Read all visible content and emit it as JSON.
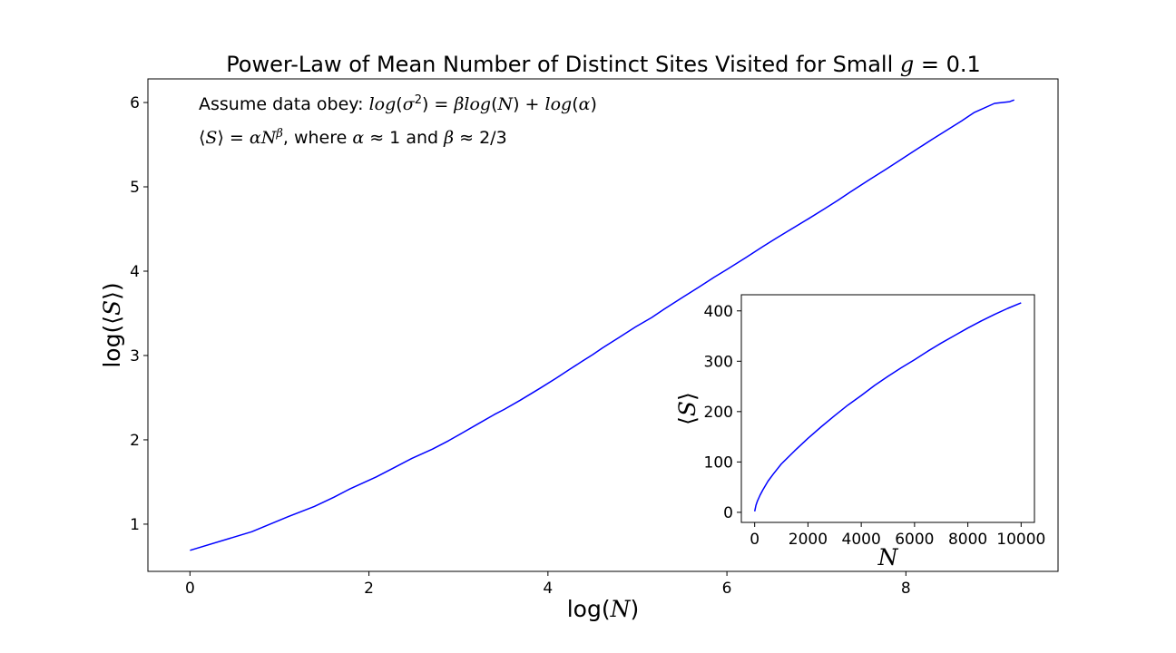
{
  "chart_data": [
    {
      "type": "line",
      "title": {
        "prefix": "Power-Law of  Mean Number of Distinct Sites Visited for Small ",
        "var": "g",
        "suffix": " = 0.1"
      },
      "xlabel": {
        "pre": "log(",
        "var": "N",
        "post": ")"
      },
      "ylabel": {
        "pre": "log(⟨",
        "var": "S",
        "post": "⟩)"
      },
      "xlim": [
        -0.47,
        9.7
      ],
      "ylim": [
        0.44,
        6.28
      ],
      "xticks": [
        0,
        2,
        4,
        6,
        8
      ],
      "yticks": [
        1,
        2,
        3,
        4,
        5,
        6
      ],
      "grid": false,
      "annotations": [
        {
          "segments": [
            {
              "t": "Assume data obey: ",
              "it": false
            },
            {
              "t": "log",
              "it": true
            },
            {
              "t": "(",
              "it": false
            },
            {
              "t": "σ",
              "it": true
            },
            {
              "t": "2",
              "it": false,
              "sup": true
            },
            {
              "t": ") = ",
              "it": false
            },
            {
              "t": "βlog",
              "it": true
            },
            {
              "t": "(",
              "it": false
            },
            {
              "t": "N",
              "it": true
            },
            {
              "t": ") + ",
              "it": false
            },
            {
              "t": "log",
              "it": true
            },
            {
              "t": "(",
              "it": false
            },
            {
              "t": "α",
              "it": true
            },
            {
              "t": ")",
              "it": false
            }
          ]
        },
        {
          "segments": [
            {
              "t": "⟨",
              "it": false
            },
            {
              "t": "S",
              "it": true
            },
            {
              "t": "⟩ = ",
              "it": false
            },
            {
              "t": "αN",
              "it": true
            },
            {
              "t": "β",
              "it": true,
              "sup": true
            },
            {
              "t": ", where ",
              "it": false
            },
            {
              "t": "α",
              "it": true
            },
            {
              "t": " ≈ 1 and ",
              "it": false
            },
            {
              "t": "β",
              "it": true
            },
            {
              "t": " ≈ 2/3",
              "it": false
            }
          ]
        }
      ],
      "series": [
        {
          "color": "#0000ff",
          "x": [
            0,
            0.69,
            1.1,
            1.39,
            1.61,
            1.79,
            2.08,
            2.3,
            2.48,
            2.71,
            2.89,
            3.04,
            3.22,
            3.4,
            3.51,
            3.69,
            3.91,
            4.09,
            4.25,
            4.38,
            4.5,
            4.61,
            4.79,
            4.98,
            5.16,
            5.3,
            5.52,
            5.7,
            5.86,
            6.0,
            6.21,
            6.4,
            6.55,
            6.69,
            6.91,
            7.09,
            7.24,
            7.38,
            7.6,
            7.78,
            7.94,
            8.07,
            8.29,
            8.47,
            8.62,
            8.76,
            8.99,
            9.16,
            9.21
          ],
          "y": [
            0.69,
            0.91,
            1.09,
            1.21,
            1.32,
            1.42,
            1.56,
            1.68,
            1.78,
            1.89,
            1.99,
            2.08,
            2.19,
            2.3,
            2.36,
            2.47,
            2.61,
            2.73,
            2.84,
            2.93,
            3.01,
            3.09,
            3.21,
            3.34,
            3.45,
            3.55,
            3.7,
            3.82,
            3.93,
            4.02,
            4.16,
            4.29,
            4.39,
            4.48,
            4.62,
            4.74,
            4.84,
            4.94,
            5.09,
            5.21,
            5.32,
            5.41,
            5.56,
            5.68,
            5.78,
            5.88,
            5.99,
            6.01,
            6.03
          ]
        }
      ]
    },
    {
      "type": "line",
      "title": "",
      "xlabel": {
        "pre": "",
        "var": "N",
        "post": ""
      },
      "ylabel": {
        "pre": "⟨",
        "var": "S",
        "post": "⟩"
      },
      "xlim": [
        -500,
        10500
      ],
      "ylim": [
        -20,
        432
      ],
      "xticks": [
        0,
        2000,
        4000,
        6000,
        8000,
        10000
      ],
      "yticks": [
        0,
        100,
        200,
        300,
        400
      ],
      "grid": false,
      "series": [
        {
          "color": "#0000ff",
          "x": [
            1,
            50,
            100,
            200,
            300,
            500,
            700,
            1000,
            1500,
            2000,
            2500,
            3000,
            3500,
            4000,
            4500,
            5000,
            5500,
            6000,
            6500,
            7000,
            7500,
            8000,
            8500,
            9000,
            9500,
            10000
          ],
          "y": [
            2,
            14,
            22,
            34,
            44,
            62,
            76,
            96,
            122,
            147,
            170,
            192,
            213,
            232,
            252,
            270,
            287,
            303,
            320,
            336,
            351,
            366,
            380,
            393,
            405,
            416
          ]
        }
      ]
    }
  ]
}
